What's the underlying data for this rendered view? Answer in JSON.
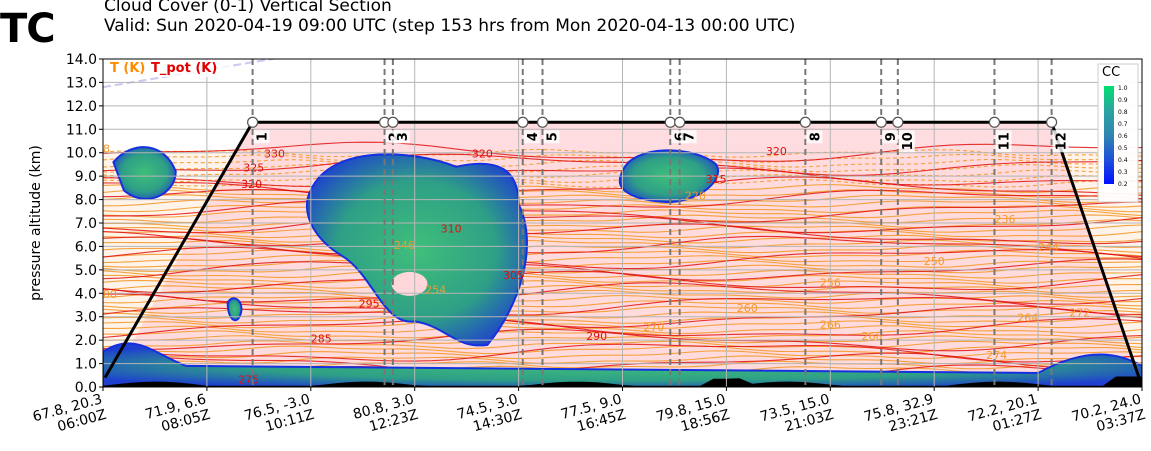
{
  "header": {
    "logo": "TC",
    "title_line1": "Cloud Cover (0-1) Vertical Section",
    "title_line2": "Valid: Sun 2020-04-19 09:00 UTC (step 153 hrs from Mon 2020-04-13 00:00 UTC)"
  },
  "legend": {
    "t_label": "T (K)",
    "tpot_label": "T_pot (K)",
    "t_color": "#ff8c00",
    "tpot_color": "#e00000"
  },
  "colorbar": {
    "title": "CC",
    "ticks": [
      "1.0",
      "0.9",
      "0.8",
      "0.7",
      "0.6",
      "0.5",
      "0.4",
      "0.3",
      "0.2"
    ],
    "colors": [
      "#00e070",
      "#1dc58e",
      "#2ba3a0",
      "#2f86b0",
      "#2c6bc4",
      "#2050d8",
      "#1030ea",
      "#0010ff"
    ]
  },
  "colors": {
    "pink_region": "#ffd6da",
    "background_band": "#fff3ea",
    "terrain": "#000000"
  },
  "chart_data": {
    "type": "cross-section",
    "title": "Cloud Cover (0-1) Vertical Section",
    "subtitle": "Valid: Sun 2020-04-19 09:00 UTC (step 153 hrs from Mon 2020-04-13 00:00 UTC)",
    "ylabel": "pressure altitude (km)",
    "ylim": [
      0.0,
      14.0
    ],
    "yticks": [
      "0.0",
      "1.0",
      "2.0",
      "3.0",
      "4.0",
      "5.0",
      "6.0",
      "7.0",
      "8.0",
      "9.0",
      "10.0",
      "11.0",
      "12.0",
      "13.0",
      "14.0"
    ],
    "xtick_labels": [
      {
        "pos": "67.8, 20.3",
        "time": "06:00Z"
      },
      {
        "pos": "71.9, 6.6",
        "time": "08:05Z"
      },
      {
        "pos": "76.5, -3.0",
        "time": "10:11Z"
      },
      {
        "pos": "80.8, 3.0",
        "time": "12:23Z"
      },
      {
        "pos": "74.5, 3.0",
        "time": "14:30Z"
      },
      {
        "pos": "77.5, 9.0",
        "time": "16:45Z"
      },
      {
        "pos": "79.8, 15.0",
        "time": "18:56Z"
      },
      {
        "pos": "73.5, 15.0",
        "time": "21:03Z"
      },
      {
        "pos": "75.8, 32.9",
        "time": "23:21Z"
      },
      {
        "pos": "72.2, 20.1",
        "time": "01:27Z"
      },
      {
        "pos": "70.2, 24.0",
        "time": "03:37Z"
      }
    ],
    "flight_level_km": 11.3,
    "waypoints": [
      {
        "label": "1",
        "x": 0.144
      },
      {
        "label": "2",
        "x": 0.271
      },
      {
        "label": "3",
        "x": 0.279
      },
      {
        "label": "4",
        "x": 0.404
      },
      {
        "label": "5",
        "x": 0.423
      },
      {
        "label": "6",
        "x": 0.546
      },
      {
        "label": "7",
        "x": 0.555
      },
      {
        "label": "8",
        "x": 0.676
      },
      {
        "label": "9",
        "x": 0.749
      },
      {
        "label": "10",
        "x": 0.765
      },
      {
        "label": "11",
        "x": 0.858
      },
      {
        "label": "12",
        "x": 0.913
      }
    ],
    "route_start": {
      "x": 0.0,
      "y": 0.4
    },
    "route_end": {
      "x": 1.0,
      "y": 0.4
    },
    "t_pot_labels": [
      {
        "text": "330",
        "x": 0.155,
        "y": 9.8
      },
      {
        "text": "325",
        "x": 0.135,
        "y": 9.2
      },
      {
        "text": "320",
        "x": 0.133,
        "y": 8.5
      },
      {
        "text": "320",
        "x": 0.355,
        "y": 9.8
      },
      {
        "text": "320",
        "x": 0.638,
        "y": 9.9
      },
      {
        "text": "315",
        "x": 0.58,
        "y": 8.7
      },
      {
        "text": "310",
        "x": 0.325,
        "y": 6.6
      },
      {
        "text": "305",
        "x": 0.385,
        "y": 4.6
      },
      {
        "text": "295",
        "x": 0.246,
        "y": 3.4
      },
      {
        "text": "290",
        "x": 0.465,
        "y": 2.0
      },
      {
        "text": "285",
        "x": 0.2,
        "y": 1.9
      },
      {
        "text": "275",
        "x": 0.13,
        "y": 0.15
      }
    ],
    "t_labels": [
      {
        "text": "8",
        "x": 0.0,
        "y": 10.0
      },
      {
        "text": "228",
        "x": 0.56,
        "y": 8.0
      },
      {
        "text": "236",
        "x": 0.858,
        "y": 7.0
      },
      {
        "text": "244",
        "x": 0.9,
        "y": 5.8
      },
      {
        "text": "250",
        "x": 0.79,
        "y": 5.2
      },
      {
        "text": "256",
        "x": 0.69,
        "y": 4.3
      },
      {
        "text": "260",
        "x": 0.61,
        "y": 3.2
      },
      {
        "text": "264",
        "x": 0.88,
        "y": 2.8
      },
      {
        "text": "266",
        "x": 0.69,
        "y": 2.5
      },
      {
        "text": "268",
        "x": 0.73,
        "y": 2.0
      },
      {
        "text": "270",
        "x": 0.52,
        "y": 2.4
      },
      {
        "text": "272",
        "x": 0.93,
        "y": 3.0
      },
      {
        "text": "274",
        "x": 0.85,
        "y": 1.2
      },
      {
        "text": "246",
        "x": 0.28,
        "y": 5.9
      },
      {
        "text": "254",
        "x": 0.31,
        "y": 4.0
      },
      {
        "text": "00",
        "x": 0.0,
        "y": 3.8
      }
    ]
  }
}
